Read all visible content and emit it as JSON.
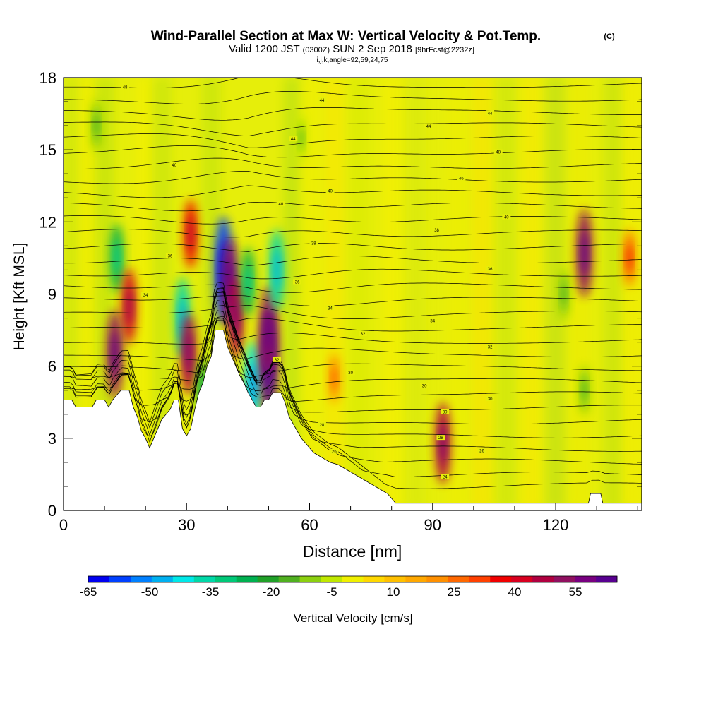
{
  "chart_data": {
    "type": "heatmap",
    "title_main": "Wind-Parallel Section at Max W: Vertical Velocity & Pot.Temp.",
    "title_mark": "(C)",
    "subtitle_pre": "Valid 1200 JST",
    "subtitle_utc": "(0300Z)",
    "subtitle_mid": "SUN 2 Sep 2018",
    "subtitle_fcst": "[9hrFcst@2232z]",
    "subtitle_ijk": "i,j,k,angle=92,59,24,75",
    "xlabel": "Distance [nm]",
    "ylabel": "Height [Kft MSL]",
    "xlim": [
      0,
      141
    ],
    "ylim": [
      0,
      18
    ],
    "x_ticks": [
      "0",
      "30",
      "60",
      "90",
      "120"
    ],
    "y_ticks": [
      "0",
      "3",
      "6",
      "9",
      "12",
      "15",
      "18"
    ],
    "colorbar": {
      "label": "Vertical Velocity [cm/s]",
      "tick_labels": [
        "-65",
        "-50",
        "-35",
        "-20",
        "-5",
        "10",
        "25",
        "40",
        "55"
      ],
      "colors": [
        "#0000f0",
        "#0040ff",
        "#0080ff",
        "#00b0f0",
        "#00e8e8",
        "#00d8a8",
        "#00c878",
        "#00b050",
        "#20a028",
        "#50b020",
        "#8cd010",
        "#c0e800",
        "#f0f000",
        "#ffd800",
        "#ffc000",
        "#ffa800",
        "#ff9000",
        "#ff6800",
        "#ff4000",
        "#f00000",
        "#d80020",
        "#b00040",
        "#901060",
        "#780080",
        "#580090"
      ]
    },
    "terrain_height_kft": [
      [
        0,
        4.6
      ],
      [
        2,
        4.6
      ],
      [
        3,
        4.3
      ],
      [
        7,
        4.3
      ],
      [
        8,
        4.6
      ],
      [
        10,
        4.6
      ],
      [
        11,
        4.3
      ],
      [
        12,
        4.6
      ],
      [
        14,
        5.0
      ],
      [
        16,
        5.0
      ],
      [
        17,
        4.3
      ],
      [
        18,
        3.9
      ],
      [
        19,
        3.3
      ],
      [
        20,
        3.0
      ],
      [
        21,
        2.6
      ],
      [
        22,
        3.0
      ],
      [
        23,
        3.4
      ],
      [
        24,
        3.8
      ],
      [
        26,
        4.2
      ],
      [
        27,
        4.6
      ],
      [
        28,
        4.6
      ],
      [
        29,
        3.4
      ],
      [
        30,
        3.1
      ],
      [
        31,
        3.4
      ],
      [
        32,
        4.2
      ],
      [
        33,
        4.9
      ],
      [
        34,
        5.3
      ],
      [
        35,
        6.0
      ],
      [
        36,
        6.4
      ],
      [
        37,
        7.5
      ],
      [
        38,
        7.5
      ],
      [
        39,
        7.5
      ],
      [
        40,
        6.8
      ],
      [
        41,
        6.4
      ],
      [
        42,
        6.0
      ],
      [
        43,
        5.6
      ],
      [
        44,
        5.3
      ],
      [
        45,
        4.9
      ],
      [
        46,
        4.6
      ],
      [
        47,
        4.3
      ],
      [
        48,
        4.3
      ],
      [
        49,
        4.6
      ],
      [
        50,
        4.6
      ],
      [
        51,
        4.9
      ],
      [
        53,
        4.9
      ],
      [
        54,
        4.5
      ],
      [
        55,
        3.9
      ],
      [
        56,
        3.6
      ],
      [
        57,
        3.3
      ],
      [
        58,
        3.0
      ],
      [
        59,
        2.8
      ],
      [
        60,
        2.6
      ],
      [
        61,
        2.4
      ],
      [
        63,
        2.2
      ],
      [
        65,
        2.0
      ],
      [
        67,
        1.9
      ],
      [
        69,
        1.7
      ],
      [
        71,
        1.5
      ],
      [
        73,
        1.3
      ],
      [
        75,
        1.1
      ],
      [
        77,
        0.9
      ],
      [
        79,
        0.7
      ],
      [
        80,
        0.5
      ],
      [
        81,
        0.3
      ],
      [
        86,
        0.3
      ],
      [
        128,
        0.3
      ],
      [
        128.5,
        0.7
      ],
      [
        131,
        0.7
      ],
      [
        131.5,
        0.3
      ],
      [
        141,
        0.3
      ]
    ],
    "vertical_velocity_features_cms": [
      {
        "x": 13,
        "y": 10.5,
        "value": -30
      },
      {
        "x": 16,
        "y": 8.5,
        "value": 35
      },
      {
        "x": 12.5,
        "y": 6.5,
        "value": 45
      },
      {
        "x": 29,
        "y": 8.0,
        "value": -40
      },
      {
        "x": 30.5,
        "y": 6.5,
        "value": 40
      },
      {
        "x": 31,
        "y": 11.5,
        "value": 30
      },
      {
        "x": 34,
        "y": 5.0,
        "value": -25
      },
      {
        "x": 39,
        "y": 10.0,
        "value": -60
      },
      {
        "x": 40.5,
        "y": 9.5,
        "value": 45
      },
      {
        "x": 42,
        "y": 8.0,
        "value": 40
      },
      {
        "x": 45,
        "y": 9.5,
        "value": -30
      },
      {
        "x": 46,
        "y": 5.2,
        "value": -45
      },
      {
        "x": 50,
        "y": 6.2,
        "value": 60
      },
      {
        "x": 50,
        "y": 7.5,
        "value": 45
      },
      {
        "x": 52,
        "y": 10.0,
        "value": -40
      },
      {
        "x": 92.5,
        "y": 2.8,
        "value": 40
      },
      {
        "x": 127,
        "y": 10.7,
        "value": 45
      },
      {
        "x": 122,
        "y": 9.0,
        "value": -15
      },
      {
        "x": 127,
        "y": 5.0,
        "value": -15
      },
      {
        "x": 138,
        "y": 10.5,
        "value": 20
      },
      {
        "x": 58,
        "y": 15.5,
        "value": -12
      },
      {
        "x": 8,
        "y": 16.0,
        "value": -15
      },
      {
        "x": 66,
        "y": 5.5,
        "value": 15
      }
    ],
    "potential_temperature_contour_labels": [
      "48",
      "44",
      "44",
      "44",
      "44",
      "48",
      "40",
      "46",
      "40",
      "40",
      "40",
      "38",
      "38",
      "36",
      "36",
      "36",
      "34",
      "34",
      "34",
      "32",
      "32",
      "32",
      "30",
      "30",
      "30",
      "30",
      "28",
      "28",
      "26",
      "26",
      "24"
    ]
  }
}
